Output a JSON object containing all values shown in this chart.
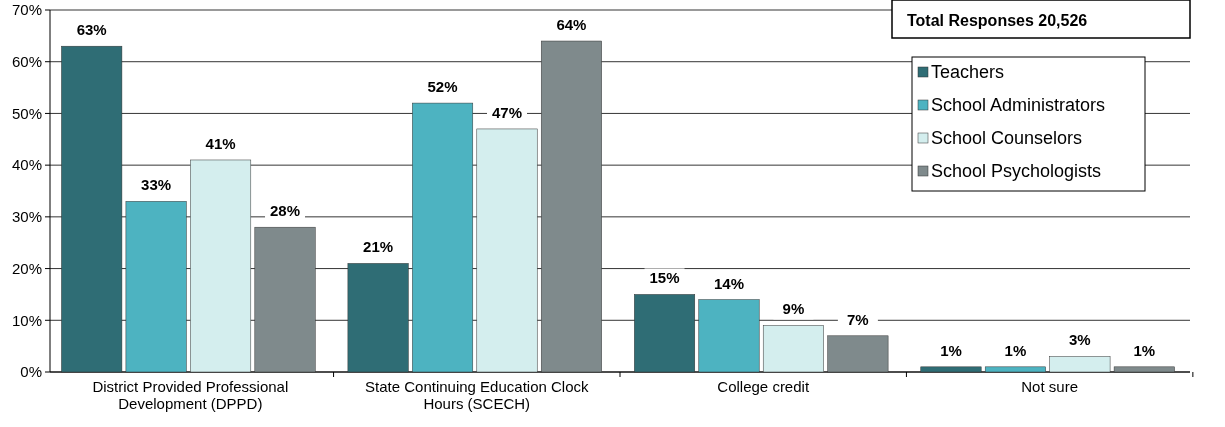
{
  "chart_data": {
    "type": "bar",
    "categories": [
      "District Provided Professional Development (DPPD)",
      "State Continuing Education Clock Hours (SCECH)",
      "College credit",
      "Not sure"
    ],
    "series": [
      {
        "name": "Teachers",
        "color": "#2f6d75",
        "values": [
          63,
          21,
          15,
          1
        ],
        "value_labels": [
          "63%",
          "21%",
          "15%",
          "1%"
        ]
      },
      {
        "name": "School Administrators",
        "color": "#4db3c1",
        "values": [
          33,
          52,
          14,
          1
        ],
        "value_labels": [
          "33%",
          "52%",
          "14%",
          "1%"
        ]
      },
      {
        "name": "School Counselors",
        "color": "#d4eeee",
        "values": [
          41,
          47,
          9,
          3
        ],
        "value_labels": [
          "41%",
          "47%",
          "9%",
          "3%"
        ]
      },
      {
        "name": "School Psychologists",
        "color": "#7f8a8c",
        "values": [
          28,
          64,
          7,
          1
        ],
        "value_labels": [
          "28%",
          "64%",
          "7%",
          "1%"
        ]
      }
    ],
    "ylim": [
      0,
      70
    ],
    "yticks": [
      {
        "value": 0,
        "label": "0%"
      },
      {
        "value": 10,
        "label": "10%"
      },
      {
        "value": 20,
        "label": "20%"
      },
      {
        "value": 30,
        "label": "30%"
      },
      {
        "value": 40,
        "label": "40%"
      },
      {
        "value": 50,
        "label": "50%"
      },
      {
        "value": 60,
        "label": "60%"
      },
      {
        "value": 70,
        "label": "70%"
      }
    ],
    "grid": "y",
    "legend": "top right",
    "annotations": [
      "Total Responses 20,526"
    ]
  }
}
